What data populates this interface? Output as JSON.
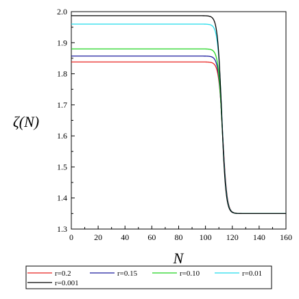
{
  "chart_data": {
    "type": "line",
    "title": "",
    "xlabel": "N",
    "ylabel": "ζ(N)",
    "xlim": [
      0,
      160
    ],
    "ylim": [
      1.3,
      2.0
    ],
    "x_ticks": [
      "0",
      "20",
      "40",
      "60",
      "80",
      "100",
      "120",
      "140",
      "160"
    ],
    "y_ticks": [
      "1.3",
      "1.4",
      "1.5",
      "1.6",
      "1.7",
      "1.8",
      "1.9",
      "2.0"
    ],
    "grid": false,
    "legend_position": "bottom",
    "series": [
      {
        "name": "r=0.2",
        "color": "#e8201e",
        "plateau": 1.838,
        "final": 1.35,
        "transition_center": 113.0,
        "transition_width": 1.55
      },
      {
        "name": "r=0.15",
        "color": "#1a1a9e",
        "plateau": 1.857,
        "final": 1.35,
        "transition_center": 112.8,
        "transition_width": 1.55
      },
      {
        "name": "r=0.10",
        "color": "#1ed31e",
        "plateau": 1.88,
        "final": 1.35,
        "transition_center": 112.6,
        "transition_width": 1.55
      },
      {
        "name": "r=0.01",
        "color": "#22dcec",
        "plateau": 1.96,
        "final": 1.35,
        "transition_center": 112.3,
        "transition_width": 1.55
      },
      {
        "name": "r=0.001",
        "color": "#000000",
        "plateau": 1.987,
        "final": 1.35,
        "transition_center": 112.1,
        "transition_width": 1.55
      }
    ]
  }
}
